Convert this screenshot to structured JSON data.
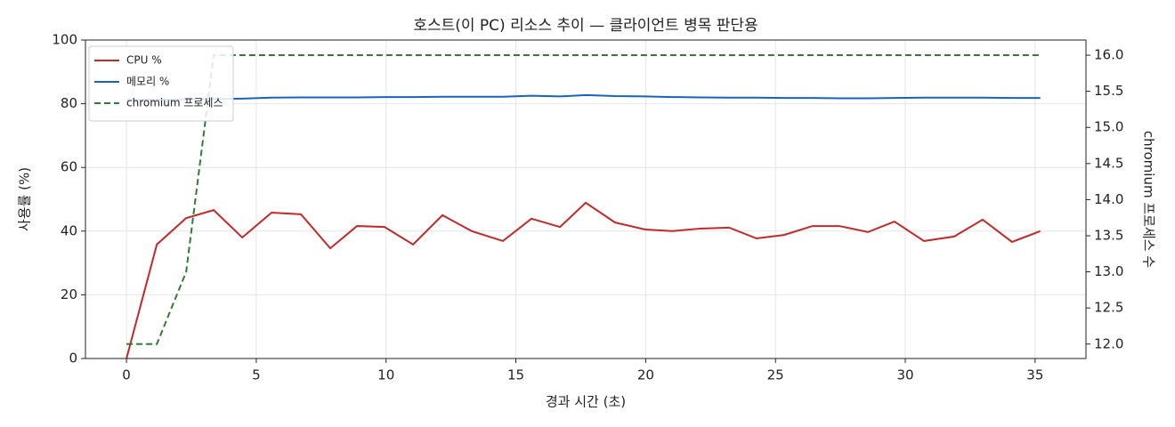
{
  "chart_data": {
    "type": "line",
    "title": "호스트(이 PC) 리소스 추이 — 클라이언트 병목 판단용",
    "xlabel": "경과 시간 (초)",
    "ylabel": "사용률 (%)",
    "y2label": "chromium 프로세스 수",
    "x": [
      0,
      1.17,
      2.3,
      3.36,
      4.46,
      5.59,
      6.72,
      7.85,
      8.88,
      9.94,
      11.04,
      12.17,
      13.3,
      14.5,
      15.6,
      16.7,
      17.69,
      18.82,
      19.99,
      21.01,
      22.11,
      23.21,
      24.27,
      25.33,
      26.43,
      27.46,
      28.56,
      29.58,
      30.72,
      31.88,
      32.98,
      34.11,
      35.2
    ],
    "series": [
      {
        "name": "CPU %",
        "color": "#c62828",
        "linestyle": "solid",
        "values": [
          0,
          35.8,
          44.1,
          46.6,
          38,
          45.8,
          45.3,
          34.6,
          41.6,
          41.3,
          35.8,
          45,
          40,
          36.9,
          43.9,
          41.3,
          48.9,
          42.7,
          40.5,
          40,
          40.8,
          41.1,
          37.7,
          38.8,
          41.6,
          41.6,
          39.7,
          43,
          36.9,
          38.3,
          43.6,
          36.6,
          40
        ]
      },
      {
        "name": "메모리 %",
        "color": "#1565c0",
        "linestyle": "solid",
        "values": [
          81.2,
          81.3,
          81.4,
          81.5,
          81.6,
          81.9,
          82,
          82,
          82,
          82.1,
          82.1,
          82.2,
          82.2,
          82.2,
          82.5,
          82.3,
          82.7,
          82.4,
          82.3,
          82.1,
          82,
          81.9,
          81.9,
          81.8,
          81.8,
          81.7,
          81.7,
          81.8,
          81.9,
          81.9,
          81.9,
          81.8,
          81.8
        ]
      },
      {
        "name": "chromium 프로세스",
        "color": "#2e7d32",
        "linestyle": "dashed",
        "axis": "y2",
        "values": [
          12,
          12,
          13,
          16,
          16,
          16,
          16,
          16,
          16,
          16,
          16,
          16,
          16,
          16,
          16,
          16,
          16,
          16,
          16,
          16,
          16,
          16,
          16,
          16,
          16,
          16,
          16,
          16,
          16,
          16,
          16,
          16,
          16
        ]
      }
    ],
    "xlim": [
      -1.58,
      36.96
    ],
    "xticks": [
      0,
      5,
      10,
      15,
      20,
      25,
      30,
      35
    ],
    "ylim": [
      0,
      100
    ],
    "yticks": [
      0,
      20,
      40,
      60,
      80,
      100
    ],
    "y2lim": [
      11.8,
      16.21
    ],
    "y2ticks": [
      {
        "value": 12,
        "label": "12.0"
      },
      12.5,
      {
        "value": 13,
        "label": "13.0"
      },
      13.5,
      {
        "value": 14,
        "label": "14.0"
      },
      14.5,
      {
        "value": 15,
        "label": "15.0"
      },
      15.5,
      {
        "value": 16,
        "label": "16.0"
      }
    ],
    "grid": true,
    "legend": "upper-left"
  }
}
